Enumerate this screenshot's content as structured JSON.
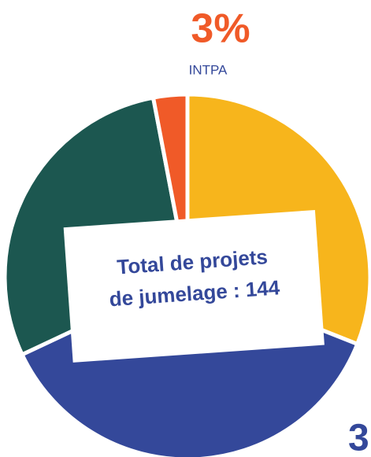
{
  "chart_data": {
    "type": "pie",
    "categories": [
      null,
      null,
      null,
      "INTPA"
    ],
    "values": [
      31,
      37,
      29,
      3
    ],
    "value_labels": [
      null,
      null,
      null,
      "3%"
    ],
    "colors": [
      "#f7b51c",
      "#34489a",
      "#1c5750",
      "#f05a28"
    ],
    "center_text": [
      "Total de projets",
      "de jumelage : 144"
    ],
    "annotation": "3"
  }
}
